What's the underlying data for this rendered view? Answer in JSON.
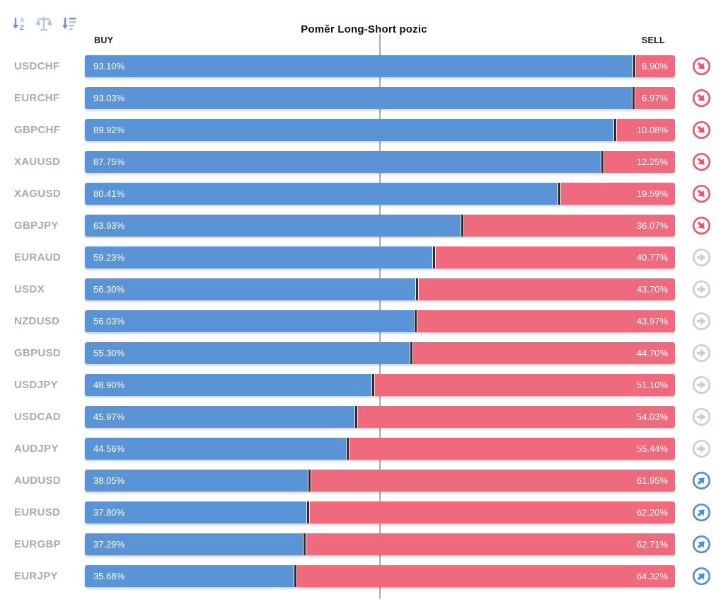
{
  "title": "Poměr Long-Short pozic",
  "headers": {
    "buy": "BUY",
    "sell": "SELL"
  },
  "toolbar": {
    "icons": [
      {
        "name": "sort-alphabetical-icon"
      },
      {
        "name": "balance-scale-icon"
      },
      {
        "name": "sort-amount-icon"
      }
    ]
  },
  "colors": {
    "buy_bar": "#5a94d6",
    "sell_bar": "#ef6a7d",
    "bar_divider": "#3a282c",
    "center_line": "#ababab",
    "pair_label": "#a7abaf",
    "signal_down": "#f0526a",
    "signal_flat": "#c5cfda",
    "signal_up": "#4a8fd5",
    "toolbar_icon_dark": "#6e94c4",
    "toolbar_icon_light": "#aec6e2"
  },
  "rows": [
    {
      "pair": "USDCHF",
      "buy": "93.10%",
      "sell": "6.90%",
      "buy_pct": 93.1,
      "sell_pct": 6.9,
      "signal": "down"
    },
    {
      "pair": "EURCHF",
      "buy": "93.03%",
      "sell": "6.97%",
      "buy_pct": 93.03,
      "sell_pct": 6.97,
      "signal": "down"
    },
    {
      "pair": "GBPCHF",
      "buy": "89.92%",
      "sell": "10.08%",
      "buy_pct": 89.92,
      "sell_pct": 10.08,
      "signal": "down"
    },
    {
      "pair": "XAUUSD",
      "buy": "87.75%",
      "sell": "12.25%",
      "buy_pct": 87.75,
      "sell_pct": 12.25,
      "signal": "down"
    },
    {
      "pair": "XAGUSD",
      "buy": "80.41%",
      "sell": "19.59%",
      "buy_pct": 80.41,
      "sell_pct": 19.59,
      "signal": "down"
    },
    {
      "pair": "GBPJPY",
      "buy": "63.93%",
      "sell": "36.07%",
      "buy_pct": 63.93,
      "sell_pct": 36.07,
      "signal": "down"
    },
    {
      "pair": "EURAUD",
      "buy": "59.23%",
      "sell": "40.77%",
      "buy_pct": 59.23,
      "sell_pct": 40.77,
      "signal": "flat"
    },
    {
      "pair": "USDX",
      "buy": "56.30%",
      "sell": "43.70%",
      "buy_pct": 56.3,
      "sell_pct": 43.7,
      "signal": "flat"
    },
    {
      "pair": "NZDUSD",
      "buy": "56.03%",
      "sell": "43.97%",
      "buy_pct": 56.03,
      "sell_pct": 43.97,
      "signal": "flat"
    },
    {
      "pair": "GBPUSD",
      "buy": "55.30%",
      "sell": "44.70%",
      "buy_pct": 55.3,
      "sell_pct": 44.7,
      "signal": "flat"
    },
    {
      "pair": "USDJPY",
      "buy": "48.90%",
      "sell": "51.10%",
      "buy_pct": 48.9,
      "sell_pct": 51.1,
      "signal": "flat"
    },
    {
      "pair": "USDCAD",
      "buy": "45.97%",
      "sell": "54.03%",
      "buy_pct": 45.97,
      "sell_pct": 54.03,
      "signal": "flat"
    },
    {
      "pair": "AUDJPY",
      "buy": "44.56%",
      "sell": "55.44%",
      "buy_pct": 44.56,
      "sell_pct": 55.44,
      "signal": "flat"
    },
    {
      "pair": "AUDUSD",
      "buy": "38.05%",
      "sell": "61.95%",
      "buy_pct": 38.05,
      "sell_pct": 61.95,
      "signal": "up"
    },
    {
      "pair": "EURUSD",
      "buy": "37.80%",
      "sell": "62.20%",
      "buy_pct": 37.8,
      "sell_pct": 62.2,
      "signal": "up"
    },
    {
      "pair": "EURGBP",
      "buy": "37.29%",
      "sell": "62.71%",
      "buy_pct": 37.29,
      "sell_pct": 62.71,
      "signal": "up"
    },
    {
      "pair": "EURJPY",
      "buy": "35.68%",
      "sell": "64.32%",
      "buy_pct": 35.68,
      "sell_pct": 64.32,
      "signal": "up"
    }
  ],
  "chart_data": {
    "type": "bar",
    "orientation": "horizontal-stacked",
    "title": "Poměr Long-Short pozic",
    "xlim": [
      0,
      100
    ],
    "center_marker_pct": 50,
    "categories": [
      "USDCHF",
      "EURCHF",
      "GBPCHF",
      "XAUUSD",
      "XAGUSD",
      "GBPJPY",
      "EURAUD",
      "USDX",
      "NZDUSD",
      "GBPUSD",
      "USDJPY",
      "USDCAD",
      "AUDJPY",
      "AUDUSD",
      "EURUSD",
      "EURGBP",
      "EURJPY"
    ],
    "series": [
      {
        "name": "BUY",
        "color": "#5a94d6",
        "values": [
          93.1,
          93.03,
          89.92,
          87.75,
          80.41,
          63.93,
          59.23,
          56.3,
          56.03,
          55.3,
          48.9,
          45.97,
          44.56,
          38.05,
          37.8,
          37.29,
          35.68
        ]
      },
      {
        "name": "SELL",
        "color": "#ef6a7d",
        "values": [
          6.9,
          6.97,
          10.08,
          12.25,
          19.59,
          36.07,
          40.77,
          43.7,
          43.97,
          44.7,
          51.1,
          54.03,
          55.44,
          61.95,
          62.2,
          62.71,
          64.32
        ]
      }
    ],
    "signals": [
      "down",
      "down",
      "down",
      "down",
      "down",
      "down",
      "flat",
      "flat",
      "flat",
      "flat",
      "flat",
      "flat",
      "flat",
      "up",
      "up",
      "up",
      "up"
    ],
    "legend": "none",
    "grid": "off"
  }
}
